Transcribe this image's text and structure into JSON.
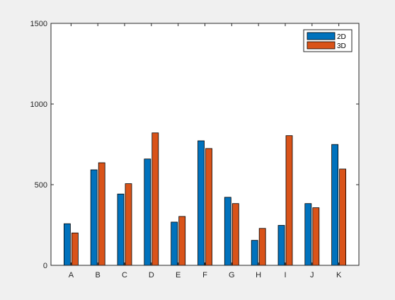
{
  "window": {
    "background": "#f0f0f0"
  },
  "chart_data": {
    "type": "bar",
    "title": "",
    "xlabel": "",
    "ylabel": "",
    "categories": [
      "A",
      "B",
      "C",
      "D",
      "E",
      "F",
      "G",
      "H",
      "I",
      "J",
      "K"
    ],
    "series": [
      {
        "name": "2D",
        "color": "#0072bd",
        "values": [
          258,
          592,
          442,
          659,
          268,
          772,
          422,
          155,
          248,
          383,
          749
        ]
      },
      {
        "name": "3D",
        "color": "#d95319",
        "values": [
          201,
          636,
          506,
          821,
          303,
          724,
          383,
          229,
          804,
          357,
          597
        ]
      }
    ],
    "ylim": [
      0,
      1500
    ],
    "yticks": [
      0,
      500,
      1000,
      1500
    ],
    "ytick_labels": [
      "0",
      "500",
      "1000",
      "1500"
    ],
    "grid": false,
    "legend": {
      "position": "top-right",
      "entries": [
        "2D",
        "3D"
      ]
    }
  }
}
